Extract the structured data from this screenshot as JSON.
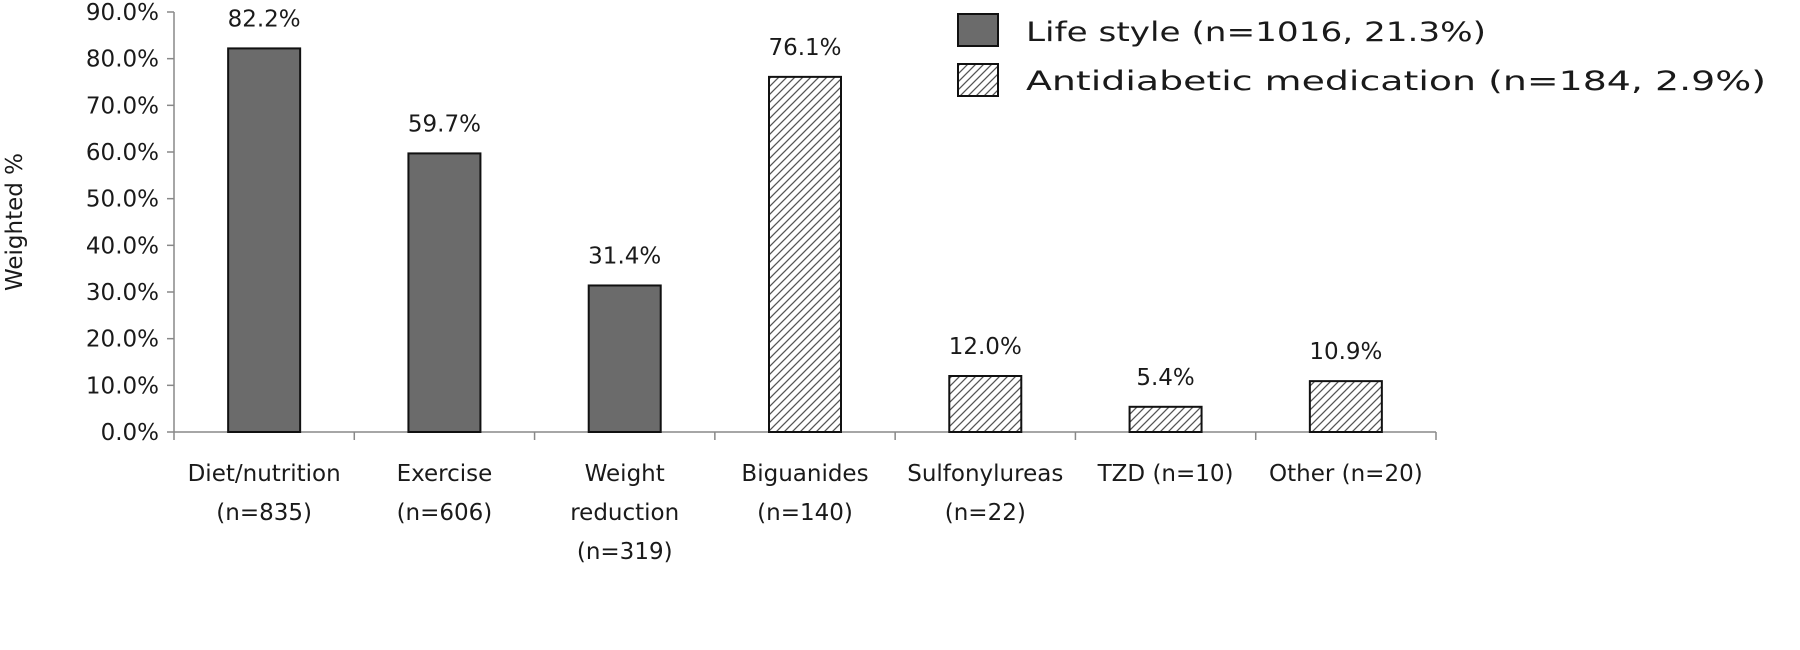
{
  "chart_data": {
    "type": "bar",
    "title": "",
    "xlabel": "",
    "ylabel": "Weighted %",
    "ylim": [
      0,
      90
    ],
    "yticks": [
      0,
      10,
      20,
      30,
      40,
      50,
      60,
      70,
      80,
      90
    ],
    "ytick_labels": [
      "0.0%",
      "10.0%",
      "20.0%",
      "30.0%",
      "40.0%",
      "50.0%",
      "60.0%",
      "70.0%",
      "80.0%",
      "90.0%"
    ],
    "grid": false,
    "legend_position": "top-right",
    "categories": [
      [
        "Diet/nutrition",
        "(n=835)"
      ],
      [
        "Exercise",
        "(n=606)"
      ],
      [
        "Weight",
        "reduction",
        "(n=319)"
      ],
      [
        "Biguanides",
        "(n=140)"
      ],
      [
        "Sulfonylureas",
        "(n=22)"
      ],
      [
        "TZD (n=10)"
      ],
      [
        "Other (n=20)"
      ]
    ],
    "values": [
      82.2,
      59.7,
      31.4,
      76.1,
      12.0,
      5.4,
      10.9
    ],
    "value_labels": [
      "82.2%",
      "59.7%",
      "31.4%",
      "76.1%",
      "12.0%",
      "5.4%",
      "10.9%"
    ],
    "bar_group": [
      0,
      0,
      0,
      1,
      1,
      1,
      1
    ],
    "series": [
      {
        "name": "Life style (n=1016, 21.3%)",
        "fill": "solid",
        "color": "#6b6b6b"
      },
      {
        "name": "Antidiabetic medication (n=184, 2.9%)",
        "fill": "hatch",
        "color": "#555555"
      }
    ]
  }
}
